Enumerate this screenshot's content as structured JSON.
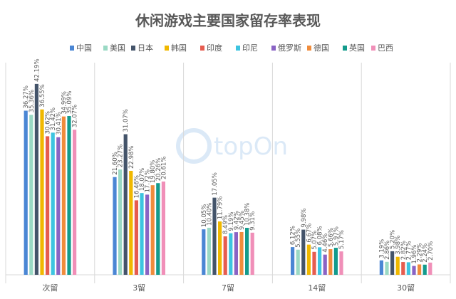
{
  "chart_data": {
    "type": "bar",
    "title": "休闲游戏主要国家留存率表现",
    "categories": [
      "次留",
      "3留",
      "7留",
      "14留",
      "30留"
    ],
    "ylim": [
      0,
      45
    ],
    "grid": false,
    "legend_position": "top",
    "series": [
      {
        "name": "中国",
        "color": "#4a86d4",
        "values": [
          36.27,
          21.6,
          10.05,
          6.12,
          3.19
        ],
        "labels": [
          "36.27%",
          "21.60%",
          "10.05%",
          "6.12%",
          "3.19%"
        ]
      },
      {
        "name": "美国",
        "color": "#9ad9c4",
        "values": [
          35.36,
          23.27,
          10.4,
          5.55,
          2.86
        ],
        "labels": [
          "35.36%",
          "23.27%",
          "10.40%",
          "5.55%",
          "2.86%"
        ]
      },
      {
        "name": "日本",
        "color": "#44546a",
        "values": [
          42.19,
          31.07,
          17.05,
          9.98,
          5.2
        ],
        "labels": [
          "42.19%",
          "31.07%",
          "17.05%",
          "9.98%",
          "5.20%"
        ]
      },
      {
        "name": "韩国",
        "color": "#f0b800",
        "values": [
          36.55,
          22.98,
          11.79,
          6.67,
          3.98
        ],
        "labels": [
          "36.55%",
          "22.98%",
          "11.79%",
          "6.67%",
          "3.98%"
        ]
      },
      {
        "name": "印度",
        "color": "#e65c4f",
        "values": [
          30.62,
          16.46,
          8.49,
          5.07,
          2.82
        ],
        "labels": [
          "30.62%",
          "16.46%",
          "8.49%",
          "5.07%",
          "2.82%"
        ]
      },
      {
        "name": "印尼",
        "color": "#3dc4e0",
        "values": [
          31.42,
          18.07,
          9.19,
          6.08,
          2.77
        ],
        "labels": [
          "31.42%",
          "18.07%",
          "9.19%",
          "6.08%",
          "2.77%"
        ]
      },
      {
        "name": "俄罗斯",
        "color": "#8a63c4",
        "values": [
          30.41,
          17.72,
          9.42,
          4.46,
          1.96
        ],
        "labels": [
          "30.41%",
          "17.72%",
          "9.42%",
          "4.46%",
          "1.96%"
        ]
      },
      {
        "name": "德国",
        "color": "#f08c3c",
        "values": [
          34.99,
          19.8,
          9.45,
          5.66,
          2.29
        ],
        "labels": [
          "34.99%",
          "19.80%",
          "9.45%",
          "5.66%",
          "2.29%"
        ]
      },
      {
        "name": "英国",
        "color": "#139b8c",
        "values": [
          35.09,
          20.26,
          10.38,
          5.97,
          2.24
        ],
        "labels": [
          "35.09%",
          "20.26%",
          "10.38%",
          "5.97%",
          "2.24%"
        ]
      },
      {
        "name": "巴西",
        "color": "#f08fb8",
        "values": [
          32.07,
          20.61,
          9.31,
          5.17,
          2.7
        ],
        "labels": [
          "32.07%",
          "20.61%",
          "9.31%",
          "5.17%",
          "2.70%"
        ]
      }
    ]
  },
  "watermark": {
    "text": "topOn",
    "color": "#dbe9f7"
  }
}
